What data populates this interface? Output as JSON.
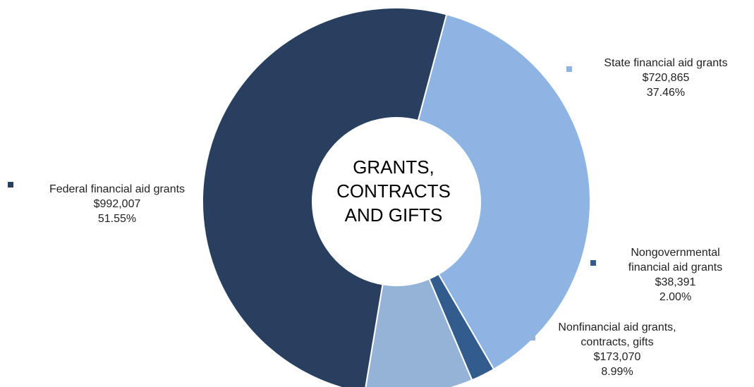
{
  "chart_data": {
    "type": "pie",
    "title": "GRANTS, CONTRACTS AND GIFTS",
    "title_lines": [
      "GRANTS,",
      "CONTRACTS",
      "AND GIFTS"
    ],
    "slices": [
      {
        "name": "State financial aid grants",
        "name_lines": [
          "State financial aid grants"
        ],
        "value": 720865,
        "value_label": "$720,865",
        "percent_label": "37.46%",
        "color": "#8eb4e3"
      },
      {
        "name": "Nongovernmental financial aid grants",
        "name_lines": [
          "Nongovernmental",
          "financial aid grants"
        ],
        "value": 38391,
        "value_label": "$38,391",
        "percent_label": "2.00%",
        "color": "#335c8e"
      },
      {
        "name": "Nonfinancial aid grants, contracts, gifts",
        "name_lines": [
          "Nonfinancial aid grants,",
          "contracts, gifts"
        ],
        "value": 173070,
        "value_label": "$173,070",
        "percent_label": "8.99%",
        "color": "#95b3d7"
      },
      {
        "name": "Federal financial aid grants",
        "name_lines": [
          "Federal financial aid grants"
        ],
        "value": 992007,
        "value_label": "$992,007",
        "percent_label": "51.55%",
        "color": "#283f5f"
      }
    ],
    "legend_placement": "around"
  }
}
